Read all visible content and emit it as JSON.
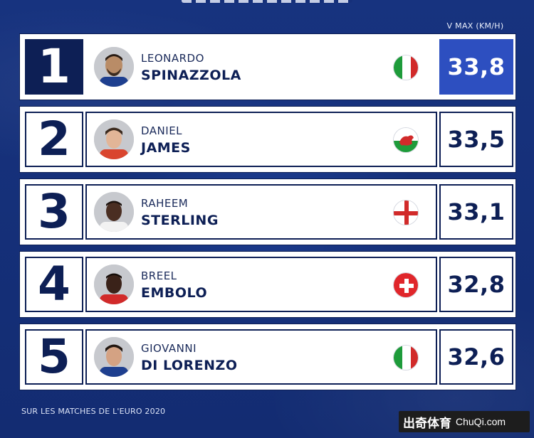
{
  "header": {
    "speed_label": "V MAX (KM/H)"
  },
  "rows": [
    {
      "rank": "1",
      "first_name": "LEONARDO",
      "last_name": "SPINAZZOLA",
      "country_flag": "italy-flag-icon",
      "speed": "33,8"
    },
    {
      "rank": "2",
      "first_name": "DANIEL",
      "last_name": "JAMES",
      "country_flag": "wales-flag-icon",
      "speed": "33,5"
    },
    {
      "rank": "3",
      "first_name": "RAHEEM",
      "last_name": "STERLING",
      "country_flag": "england-flag-icon",
      "speed": "33,1"
    },
    {
      "rank": "4",
      "first_name": "BREEL",
      "last_name": "EMBOLO",
      "country_flag": "switzerland-flag-icon",
      "speed": "32,8"
    },
    {
      "rank": "5",
      "first_name": "GIOVANNI",
      "last_name": "DI LORENZO",
      "country_flag": "italy-flag-icon",
      "speed": "32,6"
    }
  ],
  "footer": {
    "note": "SUR LES MATCHES DE L'EURO 2020"
  },
  "watermark": {
    "cn": "出奇体育",
    "en": "ChuQi.com"
  },
  "colors": {
    "navy": "#0d1f55",
    "background": "#16307a",
    "highlight": "#2d4fc0"
  }
}
